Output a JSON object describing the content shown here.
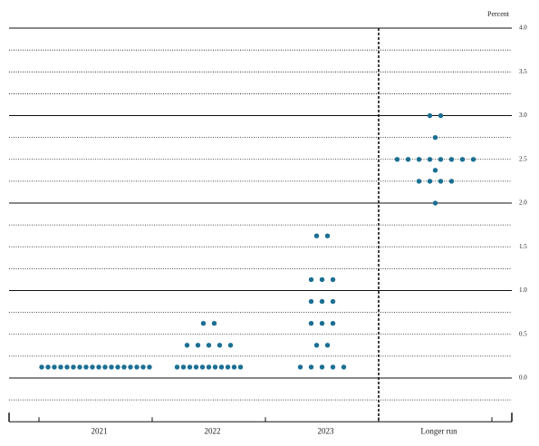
{
  "chart_data": {
    "type": "dot_plot",
    "y_label": "Percent",
    "categories": [
      "2021",
      "2022",
      "2023",
      "Longer run"
    ],
    "values": [
      [
        0.125,
        0.125,
        0.125,
        0.125,
        0.125,
        0.125,
        0.125,
        0.125,
        0.125,
        0.125,
        0.125,
        0.125,
        0.125,
        0.125,
        0.125,
        0.125,
        0.125,
        0.125
      ],
      [
        0.125,
        0.125,
        0.125,
        0.125,
        0.125,
        0.125,
        0.125,
        0.125,
        0.125,
        0.125,
        0.125,
        0.375,
        0.375,
        0.375,
        0.375,
        0.375,
        0.625,
        0.625
      ],
      [
        0.125,
        0.125,
        0.125,
        0.125,
        0.125,
        0.375,
        0.375,
        0.625,
        0.625,
        0.625,
        0.875,
        0.875,
        0.875,
        1.125,
        1.125,
        1.125,
        1.625,
        1.625
      ],
      [
        2.0,
        2.25,
        2.25,
        2.25,
        2.25,
        2.375,
        2.5,
        2.5,
        2.5,
        2.5,
        2.5,
        2.5,
        2.5,
        2.5,
        2.75,
        3.0,
        3.0
      ]
    ],
    "color": "#1b6f93",
    "ylim": [
      -0.5,
      4.1
    ],
    "yticks": [
      {
        "value": 0,
        "label": "0.0"
      },
      {
        "value": 0.5,
        "label": "0.5"
      },
      {
        "value": 1,
        "label": "1.0"
      },
      {
        "value": 1.5,
        "label": "1.5"
      },
      {
        "value": 2,
        "label": "2.0"
      },
      {
        "value": 2.5,
        "label": "2.5"
      },
      {
        "value": 3,
        "label": "3.0"
      },
      {
        "value": 3.5,
        "label": "3.5"
      },
      {
        "value": 4,
        "label": "4.0"
      }
    ],
    "grid": true
  }
}
